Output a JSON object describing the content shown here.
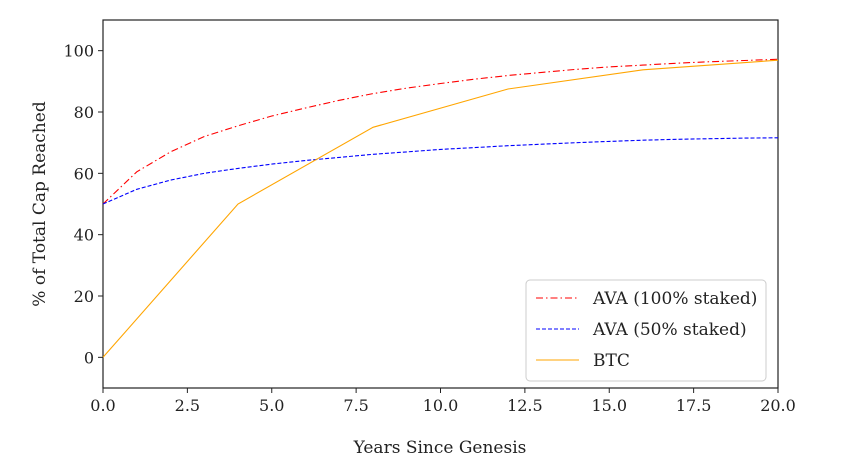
{
  "chart_data": {
    "type": "line",
    "title": "",
    "xlabel": "Years Since Genesis",
    "ylabel": "% of Total Cap Reached",
    "xlim": [
      0,
      20
    ],
    "ylim": [
      -10,
      110
    ],
    "xticks": [
      0,
      2.5,
      5,
      7.5,
      10,
      12.5,
      15,
      17.5,
      20
    ],
    "xtick_labels": [
      "0.0",
      "2.5",
      "5.0",
      "7.5",
      "10.0",
      "12.5",
      "15.0",
      "17.5",
      "20.0"
    ],
    "yticks": [
      0,
      20,
      40,
      60,
      80,
      100
    ],
    "ytick_labels": [
      "0",
      "20",
      "40",
      "60",
      "80",
      "100"
    ],
    "grid": false,
    "legend_position": "lower-right",
    "series": [
      {
        "name": "AVA (100% staked)",
        "color": "#ff0000",
        "style": "dashdot",
        "x": [
          0,
          1,
          2,
          3,
          4,
          5,
          6,
          7,
          8,
          9,
          10,
          11,
          12,
          13,
          14,
          15,
          16,
          17,
          18,
          19,
          20
        ],
        "y": [
          50,
          60.5,
          67,
          72,
          75.5,
          78.7,
          81.3,
          83.8,
          86,
          87.8,
          89.3,
          90.7,
          91.9,
          92.9,
          93.9,
          94.7,
          95.3,
          95.9,
          96.4,
          96.8,
          97.2
        ]
      },
      {
        "name": "AVA (50% staked)",
        "color": "#0000ff",
        "style": "dashed",
        "x": [
          0,
          1,
          2,
          3,
          4,
          5,
          6,
          7,
          8,
          9,
          10,
          11,
          12,
          13,
          14,
          15,
          16,
          17,
          18,
          19,
          20
        ],
        "y": [
          50,
          54.8,
          57.8,
          60,
          61.6,
          63,
          64.2,
          65.2,
          66.2,
          67,
          67.8,
          68.4,
          69,
          69.5,
          70,
          70.4,
          70.8,
          71.1,
          71.3,
          71.5,
          71.6
        ]
      },
      {
        "name": "BTC",
        "color": "#ffa500",
        "style": "solid",
        "x": [
          0,
          4,
          8,
          12,
          16,
          20
        ],
        "y": [
          0,
          50,
          75,
          87.5,
          93.75,
          96.9
        ]
      }
    ]
  }
}
